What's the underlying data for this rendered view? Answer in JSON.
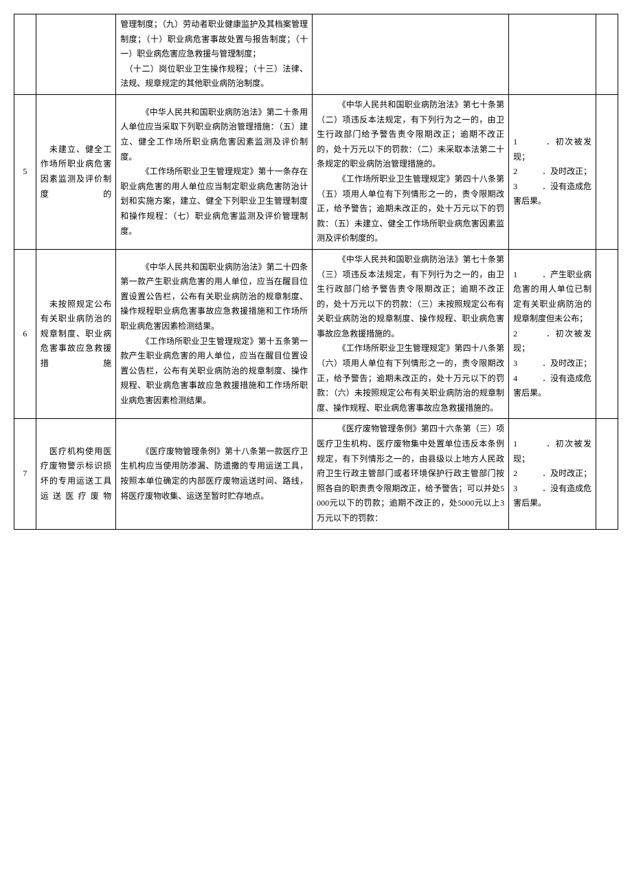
{
  "rows": [
    {
      "num": "",
      "title": "",
      "basis": "管理制度；（九）劳动者职业健康监护及其档案管理制度；（十）职业病危害事故处置与报告制度；（十一）职业病危害应急救援与管理制度；\n　（十二）岗位职业卫生操作规程；（十三）法律、法规、规章规定的其他职业病防治制度。",
      "penalty": "",
      "cond": "",
      "extra": ""
    },
    {
      "num": "5",
      "title": "　未建立、健全工作场所职业病危害因素监测及评价制度的",
      "basis": "　　　《中华人民共和国职业病防治法》第二十条用人单位应当采取下列职业病防治管理措施：（五）建立、健全工作场所职业病危害因素监测及评价制度。\n　　　《工作场所职业卫生管理规定》第十一条存在职业病危害的用人单位应当制定职业病危害防治计划和实施方案，建立、健全下列职业卫生管理制度和操作规程：（七）职业病危害监测及评价管理制度。",
      "penalty": "　　　《中华人民共和国职业病防治法》第七十条第（二）项违反本法规定，有下列行为之一的，由卫生行政部门给予警告责令限期改正；逾期不改正的，处十万元以下的罚款：（二）未采取本法第二十条规定的职业病防治管理措施的。\n　　　《工作场所职业卫生管理规定》第四十八条第（五）项用人单位有下列情形之一的，责令限期改正，给予警告；逾期未改正的，处十万元以下的罚款：（五）未建立、健全工作场所职业病危害因素监测及评价制度的。",
      "cond": "1　　　．初次被发现；\n2　　　．及时改正；\n3　　　．没有造成危害后果。",
      "extra": ""
    },
    {
      "num": "6",
      "title": "　未按照规定公布有关职业病防治的规章制度、职业病危害事故应急救援措施",
      "basis": "　　　《中华人民共和国职业病防治法》第二十四条第一款产生职业病危害的用人单位，应当在醒目位置设置公告栏，公布有关职业病防治的规章制度、操作规程职业病危害事故应急救援措施和工作场所职业病危害因素检测结果。\n　　　《工作场所职业卫生管理规定》第十五条第一款产生职业病危害的用人单位，应当在醒目位置设置公告栏，公布有关职业病防治的规章制度、操作规程、职业病危害事故应急救援措施和工作场所职业病危害因素检测结果。",
      "penalty": "　　　《中华人民共和国职业病防治法》第七十条第（三）项违反本法规定，有下列行为之一的，由卫生行政部门给予警告责令限期改正；逾期不改正的，处十万元以下的罚款：（三）未按照规定公布有关职业病防治的规章制度、操作规程、职业病危害事故应急救援措施的。\n　　　《工作场所职业卫生管理规定》第四十八条第（六）项用人单位有下列情形之一的，责令限期改正，给予警告；逾期未改正的，处十万元以下的罚款：（六）未按照规定公布有关职业病防治的规章制度、操作规程、职业病危害事故应急救援措施的。",
      "cond": "1　　　．产生职业病危害的用人单位已制定有关职业病防治的规章制度但未公布；\n2　　　．初次被发现；\n3　　　．及时改正；\n4　　　．没有造成危害后果。",
      "extra": ""
    },
    {
      "num": "7",
      "title": "　医疗机构使用医疗废物警示标识损坏的专用运送工具运送医疗废物",
      "basis": "　　　《医疗废物管理条例》第十八条第一款医疗卫生机构应当使用防渗漏、防遗撒的专用运送工具，按照本单位确定的内部医疗废物运送时间、路线，将医疗废物收集、运送至暂时贮存地点。",
      "penalty": "　　　《医疗废物管理条例》第四十六条第（三）项医疗卫生机构、医疗废物集中处置单位违反本条例规定，有下列情形之一的，由县级以上地方人民政府卫生行政主管部门或者环境保护行政主管部门按照各自的职责责令限期改正，给予警告；可以并处5000元以下的罚款；逾期不改正的，处5000元以上3万元以下的罚款：",
      "cond": "1　　　．初次被发现；\n2　　　．及时改正；\n3　　　．没有造成危害后果。",
      "extra": ""
    }
  ]
}
